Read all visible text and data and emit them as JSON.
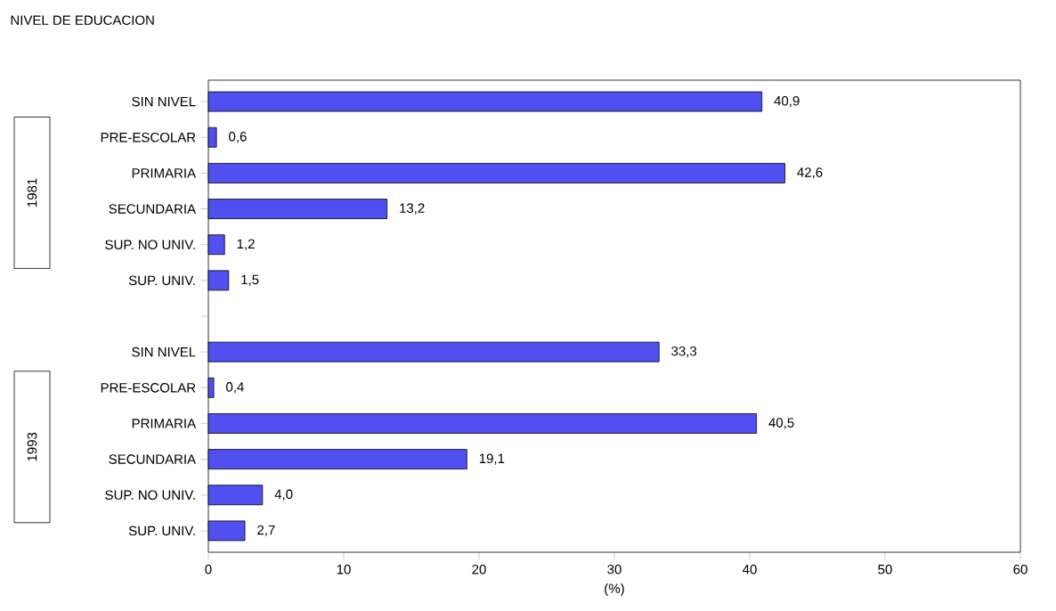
{
  "chart_data": {
    "type": "bar",
    "orientation": "horizontal",
    "title": "NIVEL DE EDUCACION",
    "xlabel": "(%)",
    "categories": [
      "SIN NIVEL",
      "PRE-ESCOLAR",
      "PRIMARIA",
      "SECUNDARIA",
      "SUP. NO UNIV.",
      "SUP. UNIV.",
      null,
      "SIN NIVEL",
      "PRE-ESCOLAR",
      "PRIMARIA",
      "SECUNDARIA",
      "SUP. NO UNIV.",
      "SUP. UNIV."
    ],
    "values": [
      40.9,
      0.6,
      42.6,
      13.2,
      1.2,
      1.5,
      null,
      33.3,
      0.4,
      40.5,
      19.1,
      4.0,
      2.7
    ],
    "value_labels": [
      "40,9",
      "0,6",
      "42,6",
      "13,2",
      "1,2",
      "1,5",
      null,
      "33,3",
      "0,4",
      "40,5",
      "19,1",
      "4,0",
      "2,7"
    ],
    "color": "#5050f0",
    "xlim": [
      0,
      60
    ],
    "xticks": [
      0,
      10,
      20,
      30,
      40,
      50,
      60
    ],
    "grid": false,
    "annotations": [
      "1981",
      "1993"
    ]
  }
}
